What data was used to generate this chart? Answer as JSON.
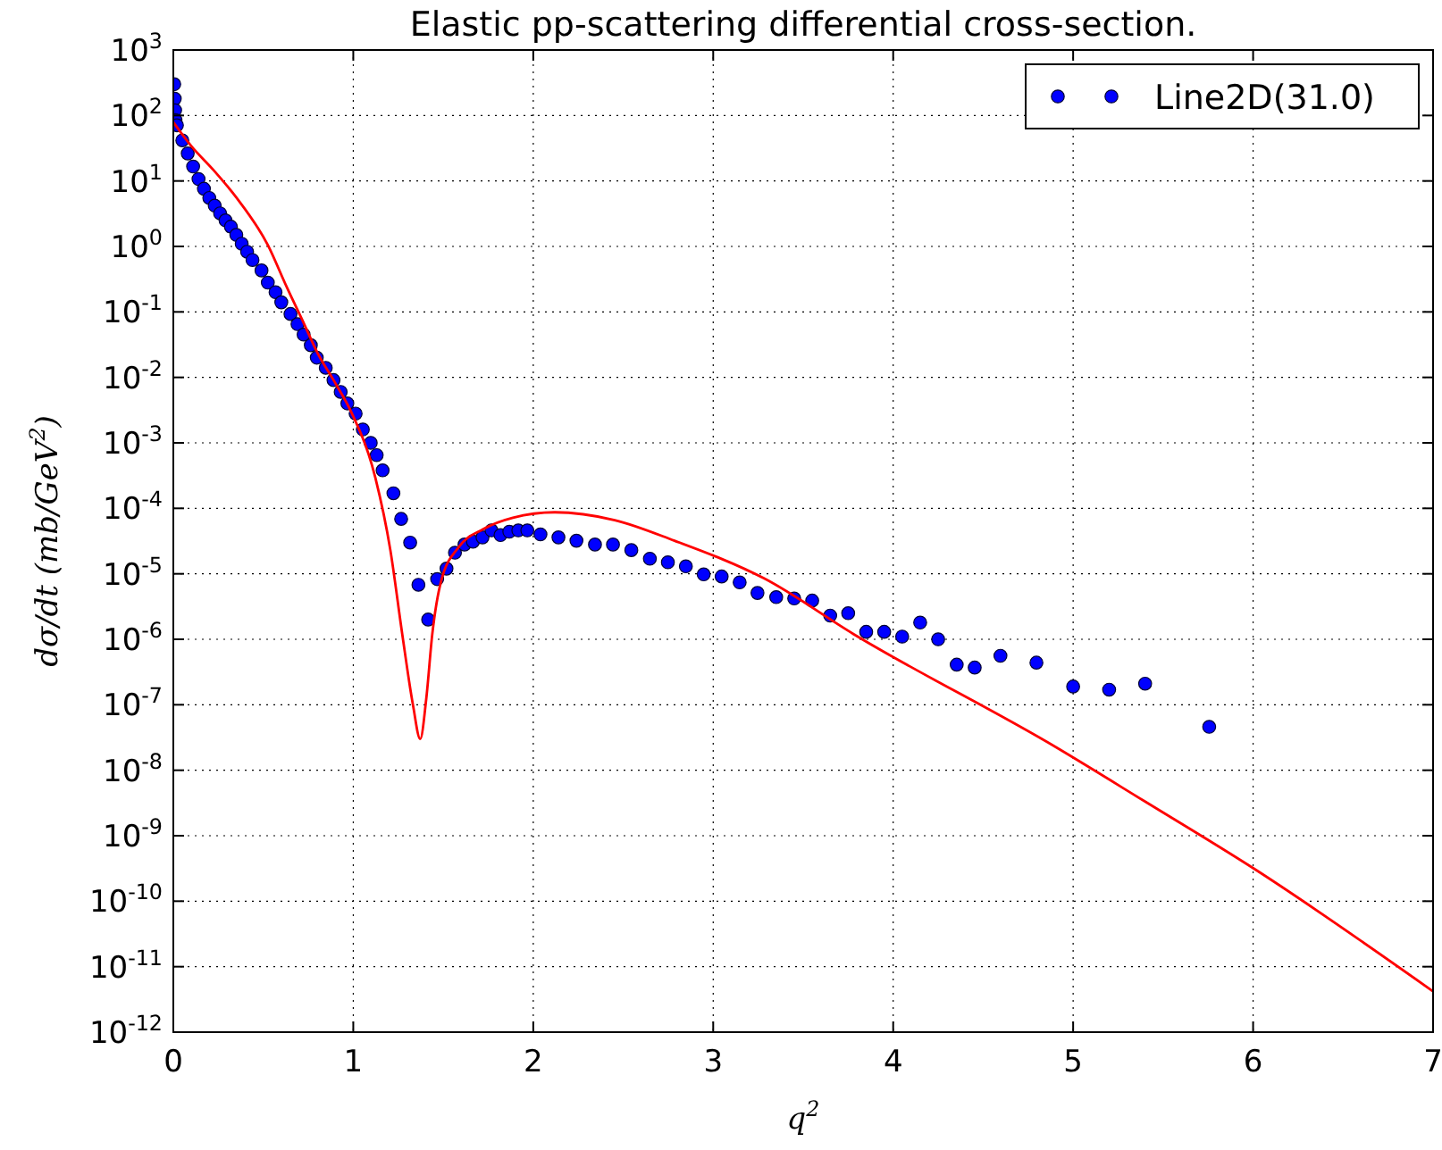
{
  "chart_data": {
    "type": "scatter",
    "title": "Elastic pp-scattering differential cross-section.",
    "xlabel": "q$^{2}$",
    "ylabel": "dσ/dt (mb/GeV$^{2}$)",
    "series": [
      {
        "name": "Line2D(31.0)",
        "color": "#0000ff",
        "marker": "circle",
        "x": [
          0.005,
          0.008,
          0.01,
          0.012,
          0.02,
          0.05,
          0.08,
          0.11,
          0.14,
          0.17,
          0.2,
          0.23,
          0.26,
          0.29,
          0.32,
          0.35,
          0.38,
          0.41,
          0.44,
          0.49,
          0.525,
          0.568,
          0.6,
          0.651,
          0.69,
          0.724,
          0.764,
          0.797,
          0.847,
          0.89,
          0.93,
          0.967,
          1.013,
          1.053,
          1.097,
          1.13,
          1.163,
          1.223,
          1.266,
          1.316,
          1.362,
          1.416,
          1.466,
          1.518,
          1.565,
          1.618,
          1.665,
          1.718,
          1.768,
          1.818,
          1.867,
          1.917,
          1.967,
          2.04,
          2.14,
          2.24,
          2.343,
          2.443,
          2.545,
          2.648,
          2.748,
          2.848,
          2.947,
          3.047,
          3.147,
          3.246,
          3.35,
          3.45,
          3.55,
          3.65,
          3.75,
          3.85,
          3.95,
          4.05,
          4.15,
          4.25,
          4.353,
          4.453,
          4.596,
          4.796,
          5.0,
          5.2,
          5.4,
          5.756
        ],
        "values": [
          300,
          180,
          120,
          85,
          70.8,
          41.7,
          26.3,
          16.6,
          10.7,
          7.6,
          5.5,
          4.2,
          3.2,
          2.5,
          2.0,
          1.5,
          1.1,
          0.83,
          0.62,
          0.43,
          0.28,
          0.2,
          0.14,
          0.093,
          0.065,
          0.045,
          0.031,
          0.02,
          0.014,
          0.0091,
          0.006,
          0.004,
          0.0028,
          0.0016,
          0.001,
          0.00065,
          0.00038,
          0.00017,
          6.9e-05,
          3e-05,
          6.8e-06,
          2e-06,
          8.3e-06,
          1.2e-05,
          2.1e-05,
          2.8e-05,
          3.1e-05,
          3.6e-05,
          4.6e-05,
          3.9e-05,
          4.4e-05,
          4.6e-05,
          4.6e-05,
          4e-05,
          3.6e-05,
          3.2e-05,
          2.8e-05,
          2.8e-05,
          2.3e-05,
          1.7e-05,
          1.5e-05,
          1.3e-05,
          9.8e-06,
          9.1e-06,
          7.4e-06,
          5.1e-06,
          4.4e-06,
          4.2e-06,
          3.9e-06,
          2.3e-06,
          2.5e-06,
          1.3e-06,
          1.3e-06,
          1.1e-06,
          1.8e-06,
          1e-06,
          4.1e-07,
          3.7e-07,
          5.6e-07,
          4.4e-07,
          1.9e-07,
          1.7e-07,
          2.1e-07,
          4.6e-08
        ]
      },
      {
        "type": "line",
        "color": "#ff0000",
        "line_style": "solid",
        "marker": "none",
        "x": [
          0,
          0.1,
          0.225,
          0.35,
          0.525,
          0.63,
          0.724,
          0.8,
          0.89,
          0.99,
          1.123,
          1.206,
          1.272,
          1.332,
          1.372,
          1.405,
          1.439,
          1.489,
          1.588,
          1.721,
          1.887,
          2.12,
          2.453,
          2.785,
          3.283,
          3.78,
          4.91,
          5.394,
          6,
          7
        ],
        "values": [
          79,
          34,
          14.5,
          5.6,
          1.05,
          0.24,
          0.068,
          0.024,
          0.0091,
          0.0029,
          0.00029,
          2.3e-05,
          1.2e-06,
          9.8e-08,
          3e-08,
          1.2e-07,
          1.2e-06,
          7.9e-06,
          2.6e-05,
          4.8e-05,
          7.2e-05,
          8.7e-05,
          6.6e-05,
          3.2e-05,
          8.5e-06,
          1.2e-06,
          2.2e-08,
          3.4e-09,
          3.2e-10,
          4.2e-12
        ]
      }
    ],
    "xlim": [
      0,
      7
    ],
    "xticks": [
      0,
      1,
      2,
      3,
      4,
      5,
      6,
      7
    ],
    "ylim": [
      1e-12,
      1000
    ],
    "log": "y",
    "yticks": [
      {
        "value": 1e-12,
        "label": "10$^{-12}$"
      },
      {
        "value": 1e-11,
        "label": "10$^{-11}$"
      },
      {
        "value": 1e-10,
        "label": "10$^{-10}$"
      },
      {
        "value": 1e-09,
        "label": "10$^{-9}$"
      },
      {
        "value": 1e-08,
        "label": "10$^{-8}$"
      },
      {
        "value": 1e-07,
        "label": "10$^{-7}$"
      },
      {
        "value": 1e-06,
        "label": "10$^{-6}$"
      },
      {
        "value": 1e-05,
        "label": "10$^{-5}$"
      },
      {
        "value": 0.0001,
        "label": "10$^{-4}$"
      },
      {
        "value": 0.001,
        "label": "10$^{-3}$"
      },
      {
        "value": 0.01,
        "label": "10$^{-2}$"
      },
      {
        "value": 0.1,
        "label": "10$^{-1}$"
      },
      {
        "value": 1,
        "label": "10$^{0}$"
      },
      {
        "value": 10,
        "label": "10$^{1}$"
      },
      {
        "value": 100,
        "label": "10$^{2}$"
      },
      {
        "value": 1000,
        "label": "10$^{3}$"
      }
    ],
    "grid": true,
    "legend": "top right"
  }
}
